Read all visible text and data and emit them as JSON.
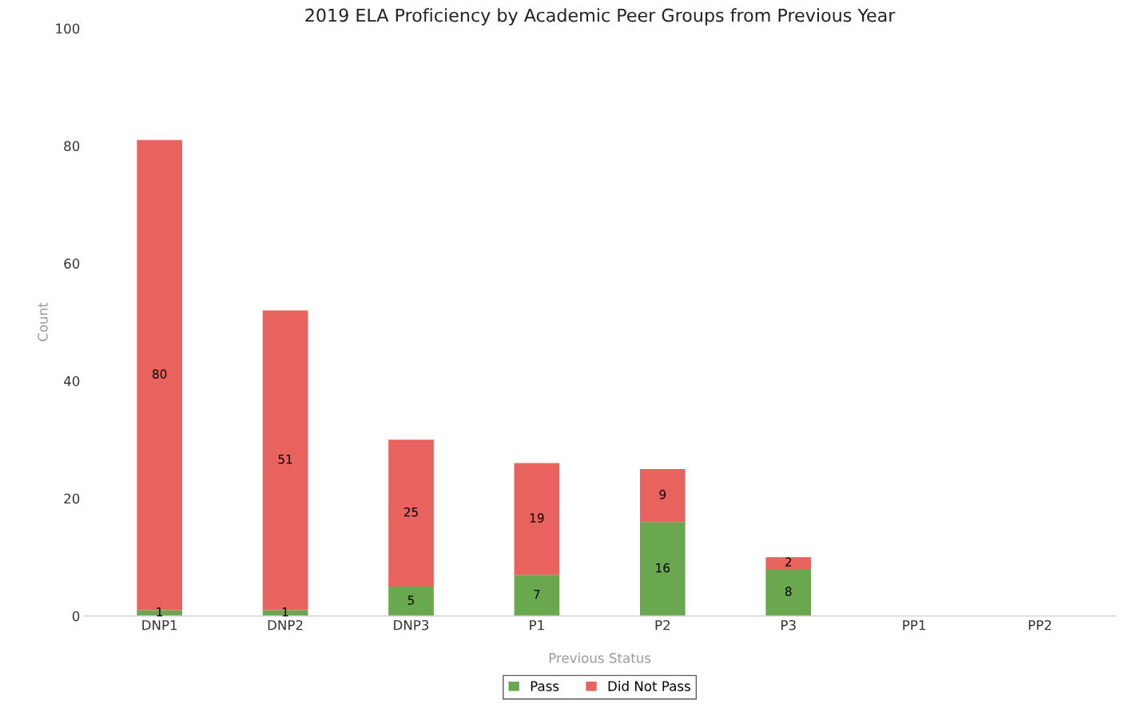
{
  "chart_data": {
    "type": "bar",
    "title": "2019 ELA Proficiency by Academic Peer Groups from Previous Year",
    "xlabel": "Previous Status",
    "ylabel": "Count",
    "categories": [
      "DNP1",
      "DNP2",
      "DNP3",
      "P1",
      "P2",
      "P3",
      "PP1",
      "PP2"
    ],
    "stacked": true,
    "series": [
      {
        "name": "Pass",
        "color": "#6aa84f",
        "values": [
          1,
          1,
          5,
          7,
          16,
          8,
          0,
          0
        ],
        "value_labels": [
          "1",
          "1",
          "5",
          "7",
          "16",
          "8",
          null,
          null
        ]
      },
      {
        "name": "Did Not Pass",
        "color": "#e8625e",
        "values": [
          80,
          51,
          25,
          19,
          9,
          2,
          0,
          0
        ],
        "value_labels": [
          "80",
          "51",
          "25",
          "19",
          "9",
          "2",
          null,
          null
        ]
      }
    ],
    "ylim": [
      0,
      100
    ],
    "yticks": [
      0,
      20,
      40,
      60,
      80,
      100
    ],
    "grid": false,
    "legend": "bottom"
  }
}
